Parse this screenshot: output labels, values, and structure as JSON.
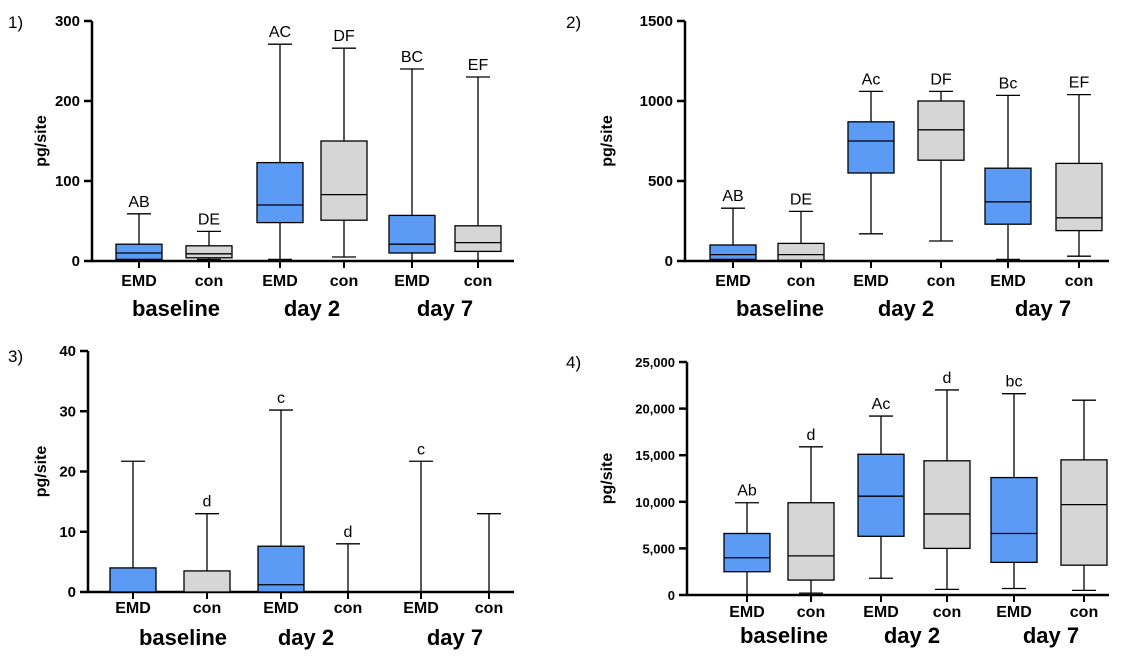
{
  "colors": {
    "EMD": "#5b9bf5",
    "con": "#d6d6d6",
    "stroke": "#000000"
  },
  "chart_data": [
    {
      "type": "box",
      "panel_label": "1)",
      "ylabel": "pg/site",
      "ylim": [
        0,
        300
      ],
      "yticks": [
        0,
        100,
        200,
        300
      ],
      "ytick_labels": [
        "0",
        "100",
        "200",
        "300"
      ],
      "categories": [
        "EMD",
        "con",
        "EMD",
        "con",
        "EMD",
        "con"
      ],
      "groups": [
        "baseline",
        "day 2",
        "day 7"
      ],
      "boxes": [
        {
          "series": "EMD",
          "min": 0,
          "q1": 2,
          "median": 10,
          "q3": 21,
          "max": 59,
          "annotation": "AB"
        },
        {
          "series": "con",
          "min": 2,
          "q1": 4,
          "median": 9,
          "q3": 19,
          "max": 37,
          "annotation": "DE"
        },
        {
          "series": "EMD",
          "min": 2,
          "q1": 48,
          "median": 70,
          "q3": 123,
          "max": 271,
          "annotation": "AC"
        },
        {
          "series": "con",
          "min": 5,
          "q1": 51,
          "median": 83,
          "q3": 150,
          "max": 266,
          "annotation": "DF"
        },
        {
          "series": "EMD",
          "min": 0,
          "q1": 10,
          "median": 21,
          "q3": 57,
          "max": 240,
          "annotation": "BC"
        },
        {
          "series": "con",
          "min": 0,
          "q1": 12,
          "median": 23,
          "q3": 44,
          "max": 230,
          "annotation": "EF"
        }
      ]
    },
    {
      "type": "box",
      "panel_label": "2)",
      "ylabel": "pg/site",
      "ylim": [
        0,
        1500
      ],
      "yticks": [
        0,
        500,
        1000,
        1500
      ],
      "ytick_labels": [
        "0",
        "500",
        "1000",
        "1500"
      ],
      "categories": [
        "EMD",
        "con",
        "EMD",
        "con",
        "EMD",
        "con"
      ],
      "groups": [
        "baseline",
        "day 2",
        "day 7"
      ],
      "boxes": [
        {
          "series": "EMD",
          "min": 0,
          "q1": 10,
          "median": 40,
          "q3": 100,
          "max": 330,
          "annotation": "AB"
        },
        {
          "series": "con",
          "min": 0,
          "q1": 5,
          "median": 40,
          "q3": 110,
          "max": 310,
          "annotation": "DE"
        },
        {
          "series": "EMD",
          "min": 170,
          "q1": 550,
          "median": 750,
          "q3": 870,
          "max": 1060,
          "annotation": "Ac"
        },
        {
          "series": "con",
          "min": 125,
          "q1": 630,
          "median": 820,
          "q3": 1000,
          "max": 1060,
          "annotation": "DF"
        },
        {
          "series": "EMD",
          "min": 10,
          "q1": 230,
          "median": 370,
          "q3": 580,
          "max": 1035,
          "annotation": "Bc"
        },
        {
          "series": "con",
          "min": 30,
          "q1": 190,
          "median": 270,
          "q3": 610,
          "max": 1040,
          "annotation": "EF"
        }
      ]
    },
    {
      "type": "box",
      "panel_label": "3)",
      "ylabel": "pg/site",
      "ylim": [
        0,
        40
      ],
      "yticks": [
        0,
        10,
        20,
        30,
        40
      ],
      "ytick_labels": [
        "0",
        "10",
        "20",
        "30",
        "40"
      ],
      "categories": [
        "EMD",
        "con",
        "EMD",
        "con",
        "EMD",
        "con"
      ],
      "groups": [
        "baseline",
        "day 2",
        "day 7"
      ],
      "boxes": [
        {
          "series": "EMD",
          "min": 0,
          "q1": 0,
          "median": 0,
          "q3": 4,
          "max": 21.7,
          "annotation": ""
        },
        {
          "series": "con",
          "min": 0,
          "q1": 0,
          "median": 0,
          "q3": 3.5,
          "max": 13,
          "annotation": "d"
        },
        {
          "series": "EMD",
          "min": 0,
          "q1": 0,
          "median": 1.2,
          "q3": 7.6,
          "max": 30.2,
          "annotation": "c"
        },
        {
          "series": "con",
          "min": 0,
          "q1": 0,
          "median": 0,
          "q3": 0,
          "max": 8,
          "annotation": "d"
        },
        {
          "series": "EMD",
          "min": 0,
          "q1": 0,
          "median": 0,
          "q3": 0,
          "max": 21.7,
          "annotation": "c"
        },
        {
          "series": "con",
          "min": 0,
          "q1": 0,
          "median": 0,
          "q3": 0,
          "max": 13,
          "annotation": ""
        }
      ]
    },
    {
      "type": "box",
      "panel_label": "4)",
      "ylabel": "pg/site",
      "ylim": [
        0,
        25000
      ],
      "yticks": [
        0,
        5000,
        10000,
        15000,
        20000,
        25000
      ],
      "ytick_labels": [
        "0",
        "5,000",
        "10,000",
        "15,000",
        "20,000",
        "25,000"
      ],
      "categories": [
        "EMD",
        "con",
        "EMD",
        "con",
        "EMD",
        "con"
      ],
      "groups": [
        "baseline",
        "day 2",
        "day 7"
      ],
      "boxes": [
        {
          "series": "EMD",
          "min": 0,
          "q1": 2500,
          "median": 4000,
          "q3": 6600,
          "max": 9900,
          "annotation": "Ab"
        },
        {
          "series": "con",
          "min": 200,
          "q1": 1600,
          "median": 4200,
          "q3": 9900,
          "max": 15900,
          "annotation": "d"
        },
        {
          "series": "EMD",
          "min": 1800,
          "q1": 6300,
          "median": 10600,
          "q3": 15100,
          "max": 19200,
          "annotation": "Ac"
        },
        {
          "series": "con",
          "min": 600,
          "q1": 5000,
          "median": 8700,
          "q3": 14400,
          "max": 22000,
          "annotation": "d"
        },
        {
          "series": "EMD",
          "min": 700,
          "q1": 3500,
          "median": 6600,
          "q3": 12600,
          "max": 21600,
          "annotation": "bc"
        },
        {
          "series": "con",
          "min": 500,
          "q1": 3200,
          "median": 9700,
          "q3": 14500,
          "max": 20900,
          "annotation": ""
        }
      ]
    }
  ]
}
